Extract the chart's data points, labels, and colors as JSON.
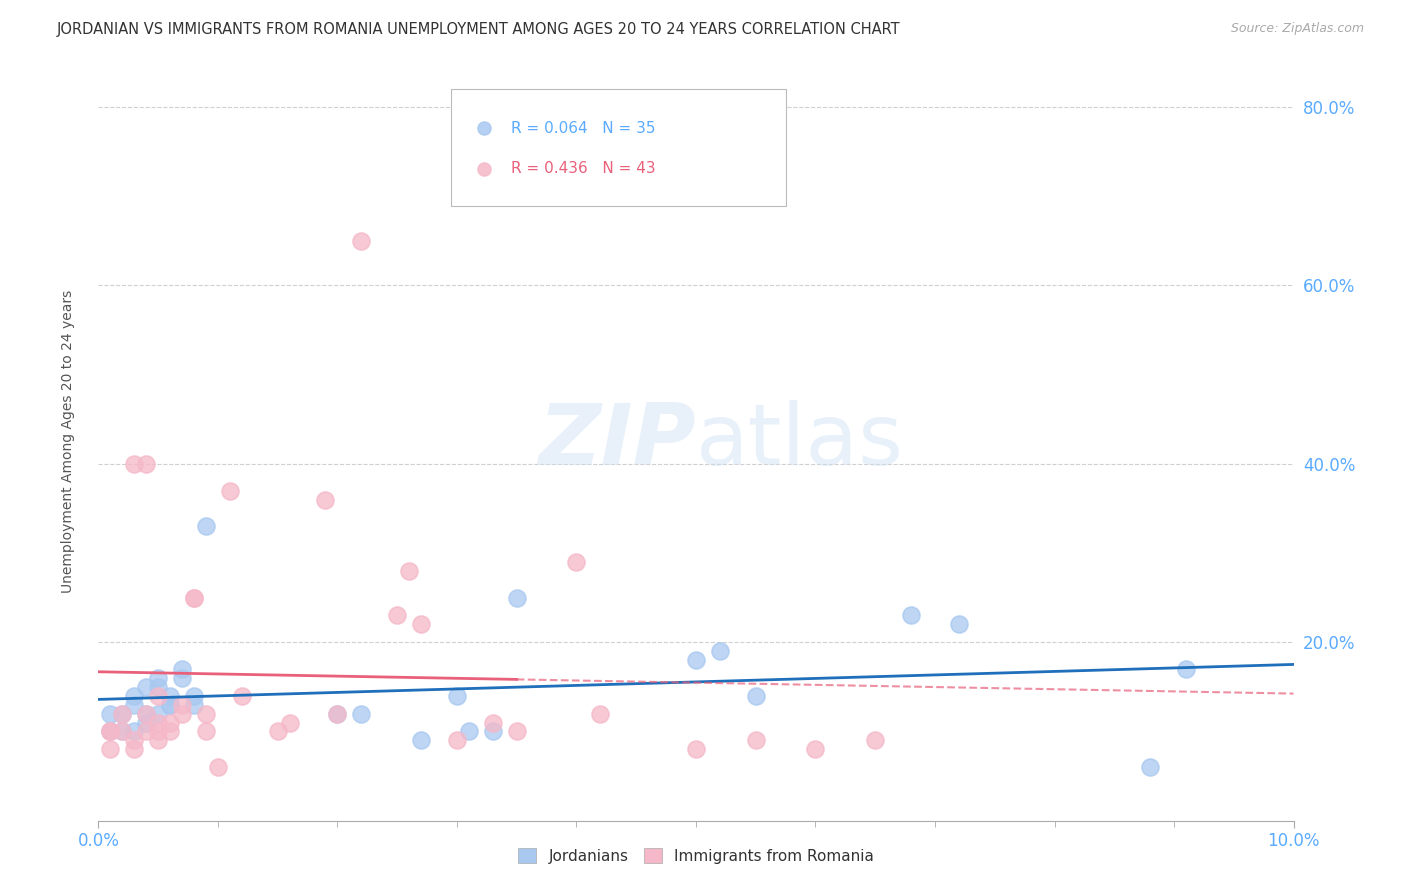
{
  "title": "JORDANIAN VS IMMIGRANTS FROM ROMANIA UNEMPLOYMENT AMONG AGES 20 TO 24 YEARS CORRELATION CHART",
  "source": "Source: ZipAtlas.com",
  "ylabel": "Unemployment Among Ages 20 to 24 years",
  "legend_1": {
    "label": "Jordanians",
    "R": "0.064",
    "N": "35",
    "color": "#a8c8f0"
  },
  "legend_2": {
    "label": "Immigrants from Romania",
    "R": "0.436",
    "N": "43",
    "color": "#f5b8c8"
  },
  "background_color": "#ffffff",
  "watermark": "ZIPatlas",
  "jordanians_x": [
    0.001,
    0.001,
    0.002,
    0.002,
    0.003,
    0.003,
    0.003,
    0.004,
    0.004,
    0.004,
    0.005,
    0.005,
    0.005,
    0.006,
    0.006,
    0.006,
    0.007,
    0.007,
    0.008,
    0.008,
    0.009,
    0.02,
    0.022,
    0.027,
    0.03,
    0.031,
    0.033,
    0.035,
    0.05,
    0.052,
    0.055,
    0.068,
    0.072,
    0.088,
    0.091
  ],
  "jordanians_y": [
    12,
    10,
    10,
    12,
    10,
    13,
    14,
    11,
    12,
    15,
    12,
    15,
    16,
    13,
    14,
    13,
    16,
    17,
    13,
    14,
    33,
    12,
    12,
    9,
    14,
    10,
    10,
    25,
    18,
    19,
    14,
    23,
    22,
    6,
    17
  ],
  "romania_x": [
    0.001,
    0.001,
    0.001,
    0.002,
    0.002,
    0.003,
    0.003,
    0.003,
    0.004,
    0.004,
    0.004,
    0.005,
    0.005,
    0.005,
    0.005,
    0.006,
    0.006,
    0.007,
    0.007,
    0.008,
    0.008,
    0.009,
    0.009,
    0.01,
    0.011,
    0.012,
    0.015,
    0.016,
    0.019,
    0.02,
    0.022,
    0.025,
    0.026,
    0.027,
    0.03,
    0.033,
    0.035,
    0.04,
    0.042,
    0.05,
    0.055,
    0.06,
    0.065
  ],
  "romania_y": [
    10,
    10,
    8,
    10,
    12,
    8,
    9,
    40,
    10,
    40,
    12,
    9,
    10,
    14,
    11,
    10,
    11,
    12,
    13,
    25,
    25,
    12,
    10,
    6,
    37,
    14,
    10,
    11,
    36,
    12,
    65,
    23,
    28,
    22,
    9,
    11,
    10,
    29,
    12,
    8,
    9,
    8,
    9
  ],
  "jordan_line_color": "#1f6fba",
  "romania_line_color": "#e8607a",
  "grid_color": "#d0d0d0",
  "right_axis_color": "#5aabff",
  "xlim": [
    0,
    0.1
  ],
  "ylim": [
    0,
    85
  ],
  "yticks": [
    0,
    20,
    40,
    60,
    80
  ],
  "ytick_labels": [
    "",
    "20.0%",
    "40.0%",
    "60.0%",
    "80.0%"
  ]
}
